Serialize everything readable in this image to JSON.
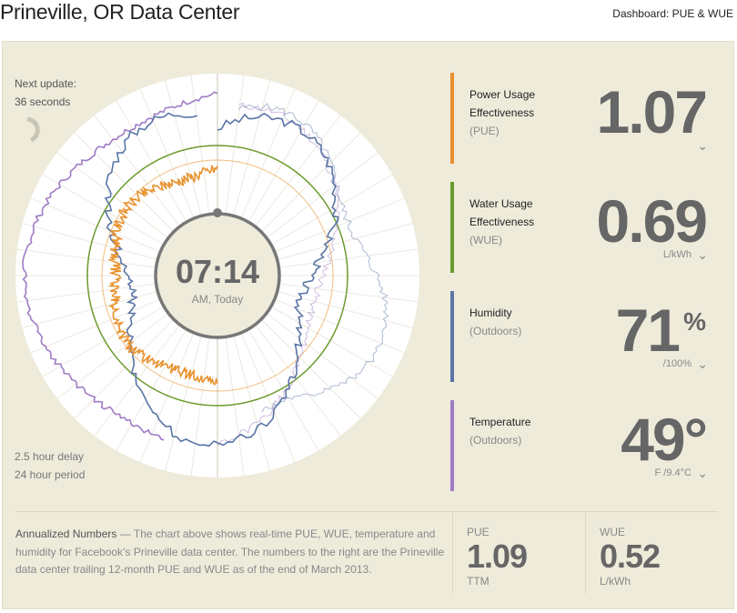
{
  "header": {
    "title": "Prineville, OR Data Center",
    "dashboard_label": "Dashboard: PUE & WUE"
  },
  "status": {
    "next_update_label": "Next update:",
    "next_update_value": "36 seconds",
    "delay": "2.5 hour delay",
    "period": "24 hour period"
  },
  "clock": {
    "time": "07:14",
    "sub": "AM, Today"
  },
  "metrics": [
    {
      "name": "Power Usage",
      "name2": "Effectiveness",
      "sub": "(PUE)",
      "value": "1.07",
      "unit": "",
      "color": "#e8912c"
    },
    {
      "name": "Water Usage",
      "name2": "Effectiveness",
      "sub": "(WUE)",
      "value": "0.69",
      "unit": "L/kWh",
      "color": "#6a9a2c"
    },
    {
      "name": "Humidity",
      "name2": "",
      "sub": "(Outdoors)",
      "value": "71",
      "suffix": "%",
      "unit": "/100%",
      "color": "#5a75a6"
    },
    {
      "name": "Temperature",
      "name2": "",
      "sub": "(Outdoors)",
      "value": "49°",
      "unit": "F /9.4°C",
      "color": "#a07cc5"
    }
  ],
  "annualized": {
    "title": "Annualized Numbers",
    "text": " — The chart above shows real-time PUE, WUE, temperature and humidity for Facebook’s Prineville data center. The numbers to the right are the Prineville data center trailing 12-month PUE and WUE as of the end of March 2013.",
    "pue_label": "PUE",
    "pue_value": "1.09",
    "pue_unit": "TTM",
    "wue_label": "WUE",
    "wue_value": "0.52",
    "wue_unit": "L/kWh"
  },
  "chart_colors": {
    "pue": "#e8912c",
    "wue": "#6a9a2c",
    "humidity": "#5a75a6",
    "temperature": "#a07cc5"
  }
}
